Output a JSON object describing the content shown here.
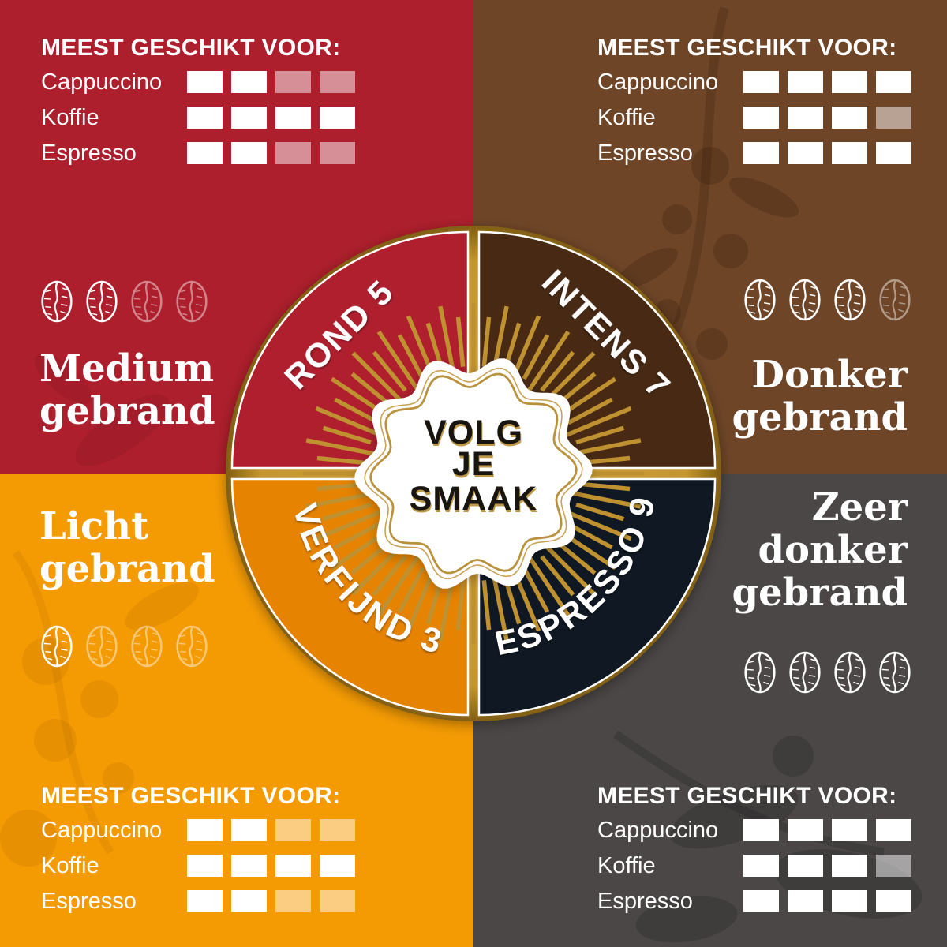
{
  "badge": {
    "lines": [
      "VOLG",
      "JE",
      "SMAAK"
    ]
  },
  "wheel": {
    "segments": [
      {
        "id": "rond",
        "label": "ROND 5",
        "color": "#c32134",
        "position": "top-left"
      },
      {
        "id": "intens",
        "label": "INTENS 7",
        "color": "#4f2e1a",
        "position": "top-right"
      },
      {
        "id": "verfijnd",
        "label": "VERFIJND 3",
        "color": "#ec8c04",
        "position": "bottom-left"
      },
      {
        "id": "espresso",
        "label": "ESPRESSO 9",
        "color": "#16222e",
        "position": "bottom-right"
      }
    ]
  },
  "colors": {
    "red_background": "#ad1f2c",
    "brown_background": "#6e4527",
    "orange_background": "#f49b04",
    "gray_background": "#4b4747",
    "gold": "#c1932f",
    "white": "#ffffff"
  },
  "quadrants": [
    {
      "id": "medium",
      "title": "Medium\ngebrand",
      "beans_filled": 2,
      "beans_total": 4,
      "table": {
        "header": "MEEST GESCHIKT VOOR:",
        "rows": [
          {
            "label": "Cappuccino",
            "filled": 2,
            "total": 4
          },
          {
            "label": "Koffie",
            "filled": 4,
            "total": 4
          },
          {
            "label": "Espresso",
            "filled": 2,
            "total": 4
          }
        ]
      }
    },
    {
      "id": "donker",
      "title": "Donker\ngebrand",
      "beans_filled": 3,
      "beans_total": 4,
      "table": {
        "header": "MEEST GESCHIKT VOOR:",
        "rows": [
          {
            "label": "Cappuccino",
            "filled": 4,
            "total": 4
          },
          {
            "label": "Koffie",
            "filled": 3,
            "total": 4
          },
          {
            "label": "Espresso",
            "filled": 4,
            "total": 4
          }
        ]
      }
    },
    {
      "id": "licht",
      "title": "Licht\ngebrand",
      "beans_filled": 1,
      "beans_total": 4,
      "table": {
        "header": "MEEST GESCHIKT VOOR:",
        "rows": [
          {
            "label": "Cappuccino",
            "filled": 2,
            "total": 4
          },
          {
            "label": "Koffie",
            "filled": 4,
            "total": 4
          },
          {
            "label": "Espresso",
            "filled": 2,
            "total": 4
          }
        ]
      }
    },
    {
      "id": "zeer-donker",
      "title": "Zeer\ndonker\ngebrand",
      "beans_filled": 4,
      "beans_total": 4,
      "table": {
        "header": "MEEST GESCHIKT VOOR:",
        "rows": [
          {
            "label": "Cappuccino",
            "filled": 4,
            "total": 4
          },
          {
            "label": "Koffie",
            "filled": 3,
            "total": 4
          },
          {
            "label": "Espresso",
            "filled": 4,
            "total": 4
          }
        ]
      }
    }
  ]
}
